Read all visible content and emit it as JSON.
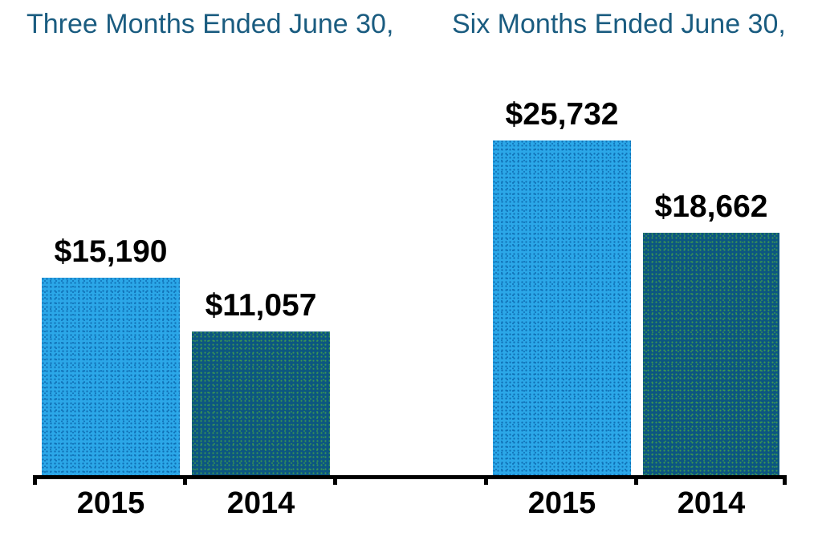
{
  "titles": {
    "left": "Three Months Ended June 30,",
    "right": "Six Months Ended June 30,"
  },
  "colors": {
    "title_text": "#1A5C80",
    "label_text": "#000000",
    "axis": "#000000",
    "bar_2015": "#2BA7E8",
    "bar_2015_dot": "#0F6FB4",
    "bar_2014": "#0C5681",
    "bar_2014_dot": "#3E9A50"
  },
  "chart_data": {
    "type": "bar",
    "groups": [
      {
        "title": "Three Months Ended June 30,",
        "categories": [
          "2015",
          "2014"
        ],
        "values": [
          15190,
          11057
        ],
        "labels": [
          "$15,190",
          "$11,057"
        ]
      },
      {
        "title": "Six Months Ended June 30,",
        "categories": [
          "2015",
          "2014"
        ],
        "values": [
          25732,
          18662
        ],
        "labels": [
          "$25,732",
          "$18,662"
        ]
      }
    ],
    "series_colors": {
      "2015": "#2BA7E8",
      "2014": "#0C5681"
    },
    "value_prefix": "$",
    "ylim": [
      0,
      26000
    ],
    "grid": false,
    "legend": "none",
    "xlabel": "",
    "ylabel": ""
  }
}
